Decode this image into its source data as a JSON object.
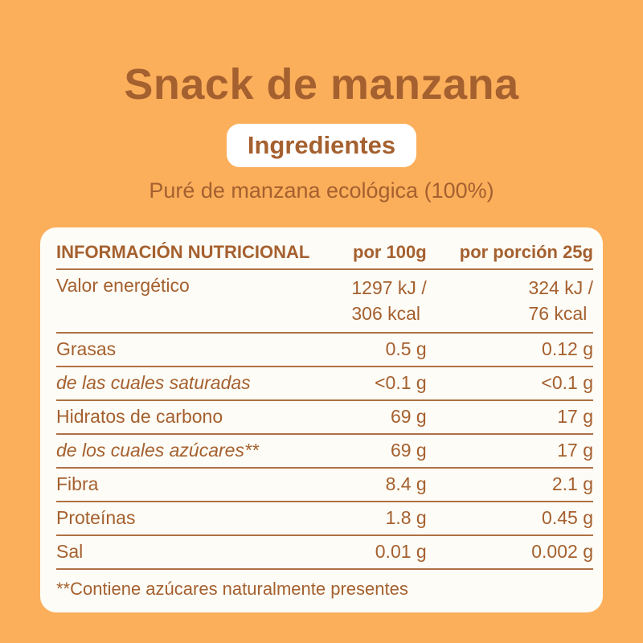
{
  "header": {
    "title": "Snack de manzana",
    "badge_label": "Ingredientes",
    "ingredients_line": "Puré de manzana ecológica (100%)"
  },
  "nutrition_table": {
    "headers": [
      "INFORMACIÓN NUTRICIONAL",
      "por 100g",
      "por porción 25g"
    ],
    "rows": [
      {
        "label": "Valor energético",
        "per_100g": [
          "1297 kJ /",
          "306 kcal"
        ],
        "per_portion": [
          "324 kJ /",
          "76 kcal"
        ],
        "italic": false
      },
      {
        "label": "Grasas",
        "per_100g": "0.5 g",
        "per_portion": "0.12 g",
        "italic": false
      },
      {
        "label": "de las cuales saturadas",
        "per_100g": "<0.1 g",
        "per_portion": "<0.1 g",
        "italic": true
      },
      {
        "label": "Hidratos de carbono",
        "per_100g": "69 g",
        "per_portion": "17 g",
        "italic": false
      },
      {
        "label": "de los cuales azúcares**",
        "per_100g": "69 g",
        "per_portion": "17 g",
        "italic": true
      },
      {
        "label": "Fibra",
        "per_100g": "8.4 g",
        "per_portion": "2.1 g",
        "italic": false
      },
      {
        "label": "Proteínas",
        "per_100g": "1.8 g",
        "per_portion": "0.45 g",
        "italic": false
      },
      {
        "label": "Sal",
        "per_100g": "0.01 g",
        "per_portion": "0.002 g",
        "italic": false
      }
    ],
    "footnote": "**Contiene azúcares naturalmente presentes"
  },
  "colors": {
    "background": "#FBAF5B",
    "card_background": "#FDFCF6",
    "brown_text": "#A5602F",
    "separator_line": "#B07144",
    "badge_background": "#FFFFFF"
  }
}
